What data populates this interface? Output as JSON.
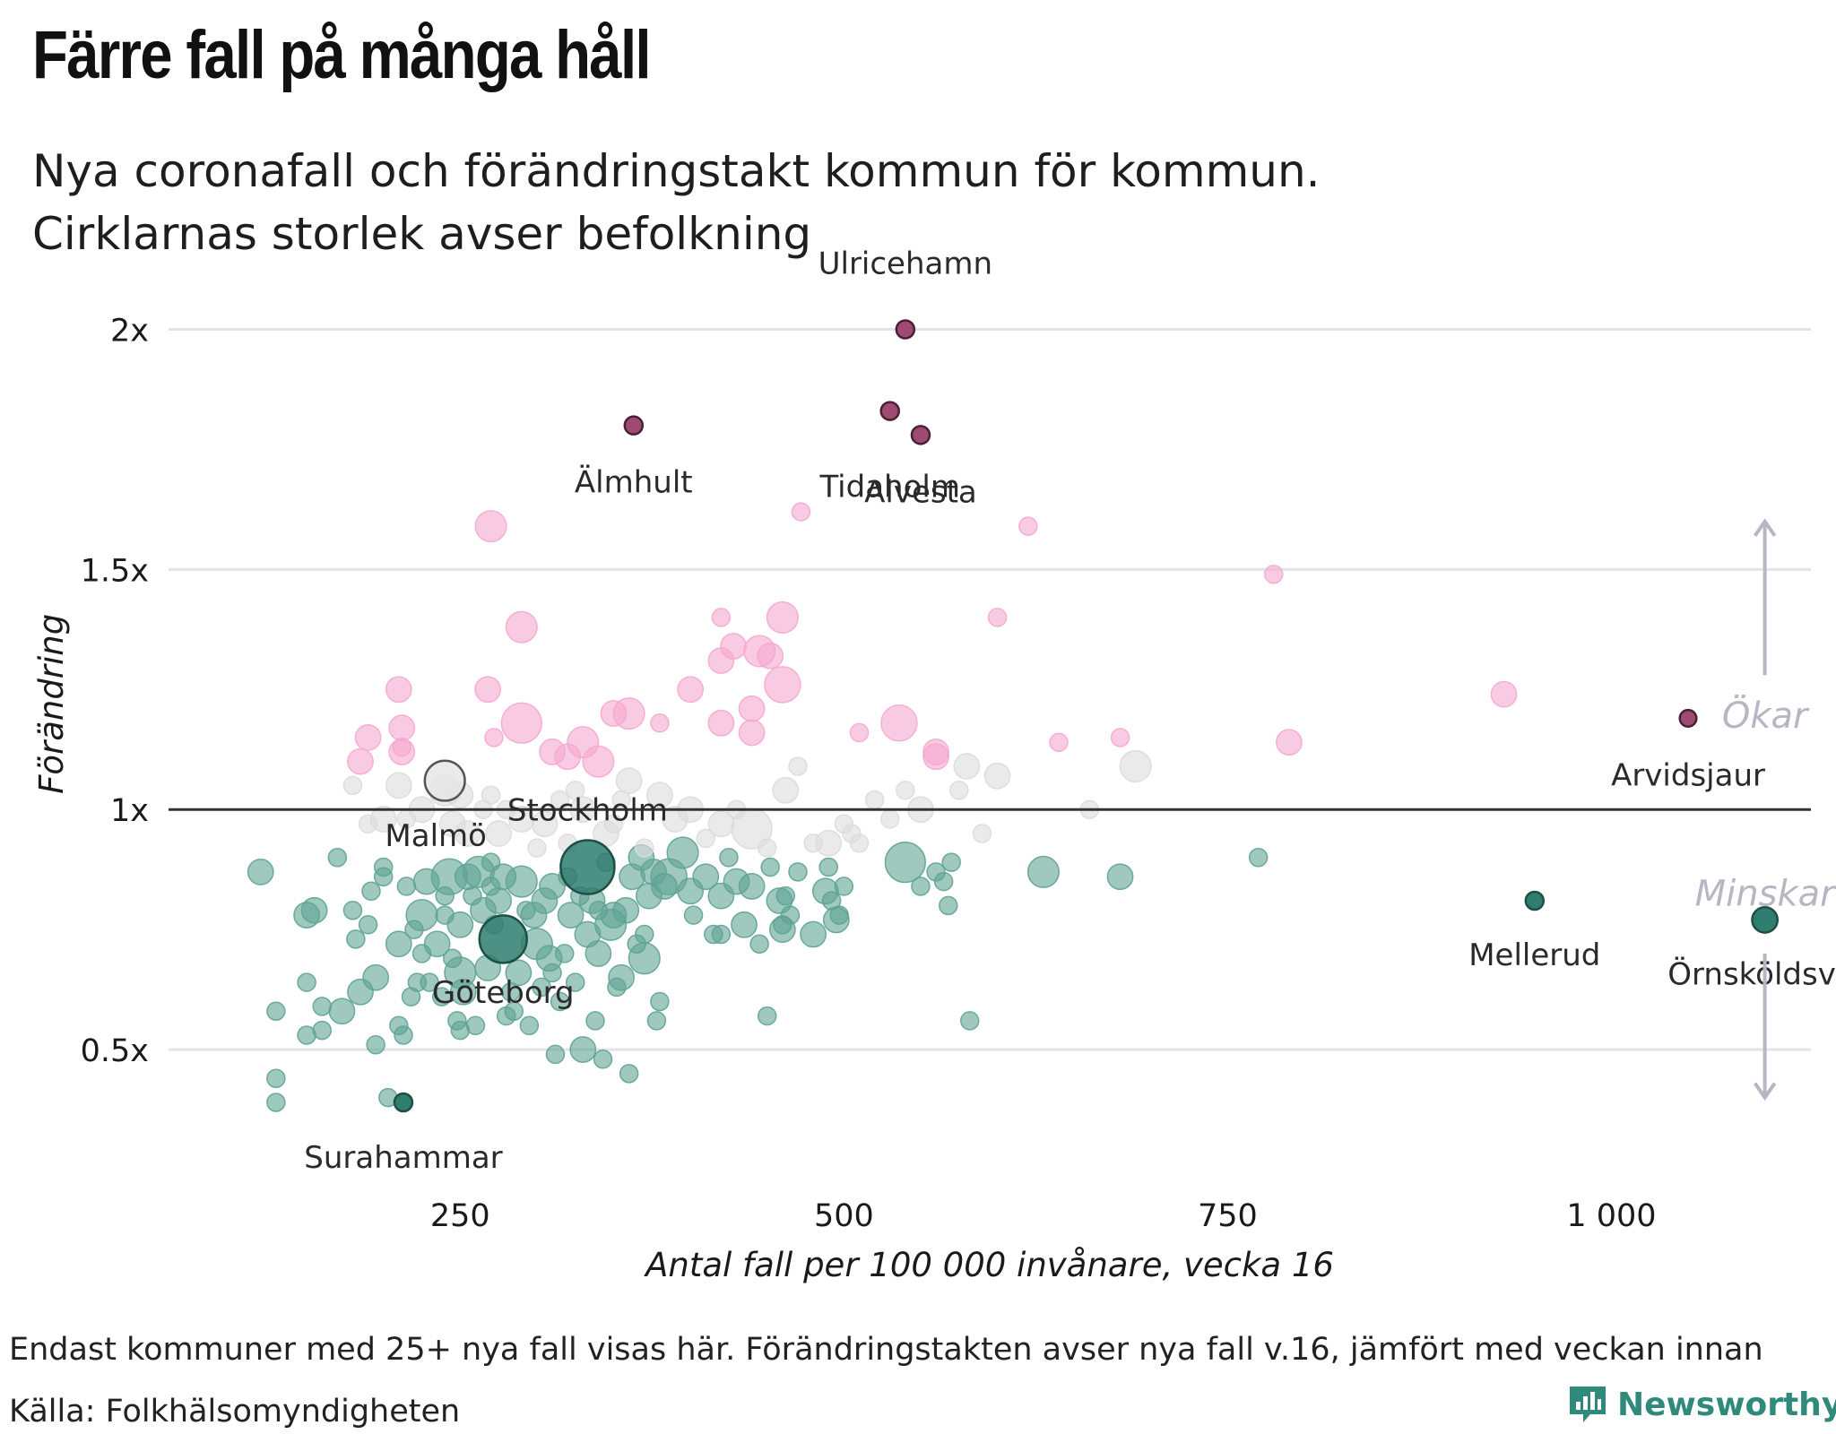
{
  "title": "Färre fall på många håll",
  "subtitle_lines": [
    "Nya coronafall och förändringstakt kommun för kommun.",
    "Cirklarnas storlek avser befolkning"
  ],
  "footnote": "Endast kommuner med 25+ nya fall visas här. Förändringstakten avser nya fall v.16, jämfört med veckan innan",
  "source": "Källa: Folkhälsomyndigheten",
  "brand": {
    "name": "Newsworthy",
    "icon": "newsworthy-logo-icon",
    "color": "#2f8a7c"
  },
  "colors": {
    "increase": "#f5a8cf",
    "decrease": "#5fa394",
    "neutral": "#dcdcdc",
    "highlight_increase": "#9e4a73",
    "highlight_decrease": "#2e7d6e",
    "gridline": "#e3e3e8",
    "baseline": "#333333",
    "arrow": "#b7b7c4"
  },
  "chart_data": {
    "type": "scatter",
    "title": "Färre fall på många håll",
    "xlabel": "Antal fall per 100 000 invånare, vecka 16",
    "ylabel": "Förändring",
    "x_ticks": [
      {
        "value": 250,
        "label": "250"
      },
      {
        "value": 500,
        "label": "500"
      },
      {
        "value": 750,
        "label": "750"
      },
      {
        "value": 1000,
        "label": "1 000"
      }
    ],
    "y_ticks": [
      {
        "value": 0.5,
        "label": "0.5x"
      },
      {
        "value": 1,
        "label": "1x"
      },
      {
        "value": 1.5,
        "label": "1.5x"
      },
      {
        "value": 2,
        "label": "2x"
      }
    ],
    "xlim": [
      60,
      1130
    ],
    "ylim": [
      0.25,
      2.07
    ],
    "grid": true,
    "reference_line": 1,
    "direction_labels": {
      "up": "Ökar",
      "down": "Minskar"
    },
    "labeled_points": [
      {
        "name": "Ulricehamn",
        "x": 540,
        "y": 2.0,
        "size": 1
      },
      {
        "name": "Älmhult",
        "x": 363,
        "y": 1.8,
        "size": 1
      },
      {
        "name": "Tidaholm",
        "x": 530,
        "y": 1.83,
        "size": 1
      },
      {
        "name": "Alvesta",
        "x": 550,
        "y": 1.78,
        "size": 1
      },
      {
        "name": "Arvidsjaur",
        "x": 1050,
        "y": 1.19,
        "size": 0.6
      },
      {
        "name": "Malmö",
        "x": 240,
        "y": 1.06,
        "size": 5
      },
      {
        "name": "Stockholm",
        "x": 333,
        "y": 0.88,
        "size": 9
      },
      {
        "name": "Göteborg",
        "x": 278,
        "y": 0.73,
        "size": 7
      },
      {
        "name": "Mellerud",
        "x": 950,
        "y": 0.81,
        "size": 1
      },
      {
        "name": "Örnsköldsvik",
        "x": 1100,
        "y": 0.77,
        "size": 2
      },
      {
        "name": "Surahammar",
        "x": 213,
        "y": 0.39,
        "size": 1
      }
    ],
    "points": [
      [
        120,
        0.87,
        2
      ],
      [
        130,
        0.58,
        1
      ],
      [
        130,
        0.44,
        1
      ],
      [
        130,
        0.39,
        1
      ],
      [
        150,
        0.64,
        1
      ],
      [
        150,
        0.53,
        1
      ],
      [
        155,
        0.79,
        2
      ],
      [
        160,
        0.59,
        1
      ],
      [
        160,
        0.54,
        1
      ],
      [
        170,
        0.9,
        1
      ],
      [
        173,
        0.58,
        2
      ],
      [
        180,
        0.79,
        1
      ],
      [
        182,
        0.73,
        1
      ],
      [
        185,
        0.62,
        2
      ],
      [
        190,
        0.76,
        1
      ],
      [
        192,
        0.83,
        1
      ],
      [
        195,
        0.65,
        2
      ],
      [
        195,
        0.51,
        1
      ],
      [
        200,
        0.88,
        1
      ],
      [
        203,
        0.4,
        1
      ],
      [
        210,
        0.72,
        2
      ],
      [
        210,
        0.55,
        1
      ],
      [
        213,
        0.53,
        1
      ],
      [
        215,
        0.84,
        1
      ],
      [
        218,
        0.61,
        1
      ],
      [
        220,
        0.75,
        1
      ],
      [
        222,
        0.64,
        1
      ],
      [
        225,
        0.7,
        1
      ],
      [
        225,
        0.78,
        3
      ],
      [
        228,
        0.85,
        2
      ],
      [
        230,
        0.64,
        1
      ],
      [
        235,
        0.72,
        2
      ],
      [
        238,
        0.61,
        1
      ],
      [
        240,
        0.82,
        1
      ],
      [
        240,
        0.78,
        1
      ],
      [
        243,
        0.86,
        4
      ],
      [
        245,
        0.69,
        1
      ],
      [
        248,
        0.56,
        1
      ],
      [
        250,
        0.76,
        2
      ],
      [
        250,
        0.66,
        3
      ],
      [
        252,
        0.62,
        2
      ],
      [
        255,
        0.86,
        2
      ],
      [
        258,
        0.82,
        1
      ],
      [
        260,
        0.55,
        1
      ],
      [
        262,
        0.87,
        3
      ],
      [
        265,
        0.79,
        2
      ],
      [
        268,
        0.67,
        2
      ],
      [
        270,
        0.89,
        1
      ],
      [
        272,
        0.76,
        1
      ],
      [
        275,
        0.81,
        2
      ],
      [
        278,
        0.86,
        2
      ],
      [
        283,
        0.62,
        1
      ],
      [
        285,
        0.58,
        1
      ],
      [
        288,
        0.66,
        2
      ],
      [
        290,
        0.85,
        3
      ],
      [
        293,
        0.79,
        1
      ],
      [
        295,
        0.55,
        1
      ],
      [
        298,
        0.78,
        2
      ],
      [
        300,
        0.72,
        3
      ],
      [
        303,
        0.63,
        1
      ],
      [
        305,
        0.81,
        2
      ],
      [
        308,
        0.69,
        2
      ],
      [
        310,
        0.84,
        2
      ],
      [
        312,
        0.49,
        1
      ],
      [
        315,
        0.6,
        1
      ],
      [
        318,
        0.7,
        1
      ],
      [
        320,
        0.86,
        1
      ],
      [
        322,
        0.78,
        2
      ],
      [
        325,
        0.64,
        1
      ],
      [
        328,
        0.82,
        1
      ],
      [
        330,
        0.5,
        2
      ],
      [
        333,
        0.74,
        2
      ],
      [
        336,
        0.81,
        2
      ],
      [
        338,
        0.56,
        1
      ],
      [
        340,
        0.7,
        2
      ],
      [
        343,
        0.48,
        1
      ],
      [
        345,
        0.89,
        1
      ],
      [
        348,
        0.76,
        3
      ],
      [
        350,
        0.78,
        2
      ],
      [
        352,
        0.63,
        1
      ],
      [
        355,
        0.65,
        2
      ],
      [
        358,
        0.79,
        2
      ],
      [
        360,
        0.45,
        1
      ],
      [
        362,
        0.86,
        2
      ],
      [
        365,
        0.72,
        1
      ],
      [
        368,
        0.9,
        2
      ],
      [
        370,
        0.69,
        3
      ],
      [
        373,
        0.82,
        2
      ],
      [
        376,
        0.87,
        2
      ],
      [
        378,
        0.56,
        1
      ],
      [
        380,
        0.6,
        1
      ],
      [
        383,
        0.84,
        2
      ],
      [
        386,
        0.86,
        4
      ],
      [
        400,
        0.83,
        2
      ],
      [
        402,
        0.78,
        1
      ],
      [
        410,
        0.86,
        2
      ],
      [
        415,
        0.74,
        1
      ],
      [
        420,
        0.82,
        2
      ],
      [
        425,
        0.9,
        1
      ],
      [
        430,
        0.85,
        2
      ],
      [
        435,
        0.76,
        2
      ],
      [
        440,
        0.84,
        2
      ],
      [
        445,
        0.72,
        1
      ],
      [
        450,
        0.57,
        1
      ],
      [
        452,
        0.88,
        1
      ],
      [
        458,
        0.81,
        2
      ],
      [
        460,
        0.75,
        2
      ],
      [
        462,
        0.82,
        1
      ],
      [
        465,
        0.78,
        1
      ],
      [
        470,
        0.87,
        1
      ],
      [
        480,
        0.74,
        2
      ],
      [
        488,
        0.83,
        2
      ],
      [
        490,
        0.88,
        1
      ],
      [
        492,
        0.81,
        1
      ],
      [
        495,
        0.77,
        2
      ],
      [
        497,
        0.78,
        1
      ],
      [
        500,
        0.84,
        1
      ],
      [
        540,
        0.89,
        5
      ],
      [
        550,
        0.84,
        1
      ],
      [
        560,
        0.87,
        1
      ],
      [
        565,
        0.85,
        1
      ],
      [
        568,
        0.8,
        1
      ],
      [
        570,
        0.89,
        1
      ],
      [
        582,
        0.56,
        1
      ],
      [
        630,
        0.87,
        3
      ],
      [
        680,
        0.86,
        2
      ],
      [
        770,
        0.9,
        1
      ],
      [
        150,
        0.78,
        2
      ],
      [
        200,
        0.86,
        1
      ],
      [
        270,
        0.84,
        1
      ],
      [
        340,
        0.79,
        1
      ],
      [
        370,
        0.74,
        1
      ],
      [
        420,
        0.74,
        1
      ],
      [
        460,
        0.76,
        1
      ],
      [
        310,
        0.66,
        1
      ],
      [
        280,
        0.57,
        1
      ],
      [
        250,
        0.54,
        1
      ],
      [
        190,
        1.15,
        2
      ],
      [
        210,
        1.25,
        2
      ],
      [
        212,
        1.13,
        1
      ],
      [
        212,
        1.17,
        2
      ],
      [
        212,
        1.12,
        2
      ],
      [
        268,
        1.25,
        2
      ],
      [
        272,
        1.15,
        1
      ],
      [
        290,
        1.38,
        3
      ],
      [
        290,
        1.18,
        5
      ],
      [
        310,
        1.12,
        2
      ],
      [
        320,
        1.11,
        2
      ],
      [
        330,
        1.14,
        3
      ],
      [
        350,
        1.2,
        2
      ],
      [
        360,
        1.2,
        3
      ],
      [
        380,
        1.18,
        1
      ],
      [
        400,
        1.25,
        2
      ],
      [
        420,
        1.4,
        1
      ],
      [
        420,
        1.31,
        2
      ],
      [
        420,
        1.18,
        2
      ],
      [
        428,
        1.34,
        2
      ],
      [
        440,
        1.21,
        2
      ],
      [
        440,
        1.16,
        2
      ],
      [
        445,
        1.33,
        3
      ],
      [
        452,
        1.32,
        2
      ],
      [
        460,
        1.4,
        3
      ],
      [
        460,
        1.26,
        4
      ],
      [
        472,
        1.62,
        1
      ],
      [
        510,
        1.16,
        1
      ],
      [
        536,
        1.18,
        4
      ],
      [
        560,
        1.12,
        2
      ],
      [
        600,
        1.4,
        1
      ],
      [
        620,
        1.59,
        1
      ],
      [
        640,
        1.14,
        1
      ],
      [
        680,
        1.15,
        1
      ],
      [
        780,
        1.49,
        1
      ],
      [
        790,
        1.14,
        2
      ],
      [
        930,
        1.24,
        2
      ],
      [
        270,
        1.59,
        3
      ],
      [
        180,
        1.05,
        1
      ],
      [
        185,
        1.1,
        2
      ],
      [
        190,
        0.97,
        1
      ],
      [
        200,
        0.98,
        2
      ],
      [
        210,
        1.05,
        2
      ],
      [
        215,
        0.98,
        1
      ],
      [
        225,
        1.0,
        2
      ],
      [
        240,
        1.04,
        3
      ],
      [
        245,
        0.97,
        2
      ],
      [
        250,
        1.03,
        2
      ],
      [
        255,
        0.95,
        2
      ],
      [
        265,
        1.0,
        1
      ],
      [
        270,
        1.03,
        1
      ],
      [
        275,
        0.95,
        2
      ],
      [
        280,
        1.0,
        1
      ],
      [
        290,
        0.98,
        2
      ],
      [
        300,
        0.92,
        1
      ],
      [
        305,
        0.97,
        2
      ],
      [
        315,
        1.02,
        1
      ],
      [
        320,
        0.93,
        1
      ],
      [
        325,
        1.04,
        1
      ],
      [
        330,
        1.0,
        2
      ],
      [
        340,
        1.1,
        3
      ],
      [
        345,
        0.95,
        2
      ],
      [
        350,
        0.97,
        1
      ],
      [
        355,
        1.02,
        1
      ],
      [
        360,
        1.06,
        2
      ],
      [
        370,
        0.92,
        1
      ],
      [
        380,
        1.03,
        2
      ],
      [
        390,
        0.98,
        2
      ],
      [
        395,
        0.91,
        3
      ],
      [
        400,
        1.0,
        2
      ],
      [
        410,
        0.94,
        1
      ],
      [
        420,
        0.97,
        2
      ],
      [
        430,
        1.0,
        1
      ],
      [
        440,
        0.96,
        5
      ],
      [
        450,
        0.92,
        1
      ],
      [
        462,
        1.04,
        2
      ],
      [
        470,
        1.09,
        1
      ],
      [
        480,
        0.93,
        1
      ],
      [
        490,
        0.93,
        2
      ],
      [
        500,
        0.97,
        1
      ],
      [
        505,
        0.95,
        1
      ],
      [
        510,
        0.93,
        1
      ],
      [
        520,
        1.02,
        1
      ],
      [
        530,
        0.98,
        1
      ],
      [
        540,
        1.04,
        1
      ],
      [
        550,
        1.0,
        2
      ],
      [
        560,
        1.11,
        2
      ],
      [
        575,
        1.04,
        1
      ],
      [
        580,
        1.09,
        2
      ],
      [
        590,
        0.95,
        1
      ],
      [
        600,
        1.07,
        2
      ],
      [
        660,
        1.0,
        1
      ],
      [
        690,
        1.09,
        3
      ]
    ]
  }
}
